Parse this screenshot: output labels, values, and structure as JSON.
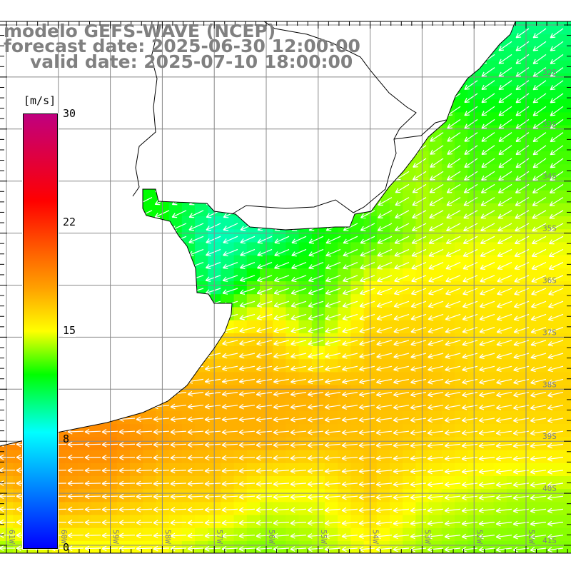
{
  "title": {
    "line1": "modelo GEFS-WAVE (NCEP)",
    "line2": "forecast date: 2025-06-30 12:00:00",
    "line3": "valid date: 2025-07-10 18:00:00"
  },
  "colorbar": {
    "unit": "[m/s]",
    "labels": [
      "30",
      "22",
      "15",
      "8",
      "0"
    ],
    "min": 0,
    "max": 30,
    "stops": [
      {
        "value": 0,
        "color": "#0000ff"
      },
      {
        "value": 8,
        "color": "#00ffff"
      },
      {
        "value": 12,
        "color": "#00ff00"
      },
      {
        "value": 15,
        "color": "#ffff00"
      },
      {
        "value": 18,
        "color": "#ffa000"
      },
      {
        "value": 20.5,
        "color": "#ff6000"
      },
      {
        "value": 24,
        "color": "#ff0000"
      },
      {
        "value": 30,
        "color": "#c0007f"
      }
    ]
  },
  "axes": {
    "lat_labels": [
      "32S",
      "33S",
      "34S",
      "35S",
      "36S",
      "37S",
      "38S",
      "39S",
      "40S",
      "41S"
    ],
    "lon_labels": [
      "61W",
      "60W",
      "59W",
      "58W",
      "57W",
      "56W",
      "55W",
      "54W",
      "53W",
      "52W",
      "51W"
    ]
  },
  "chart_data": {
    "type": "heatmap",
    "variable": "wind speed",
    "unit": "m/s",
    "lat": [
      31,
      32,
      33,
      34,
      35,
      36,
      37,
      38,
      39,
      40,
      41
    ],
    "lon": [
      61,
      60,
      59,
      58,
      57,
      56,
      55,
      54,
      53,
      52,
      51
    ],
    "speed": [
      [
        9,
        9,
        9,
        9,
        9,
        9,
        9,
        9,
        9,
        10,
        10
      ],
      [
        12,
        12,
        12,
        12,
        12,
        12,
        12,
        12,
        12,
        11,
        11
      ],
      [
        12,
        12,
        12,
        12,
        12,
        12,
        12,
        13.5,
        13.5,
        12.5,
        12.5
      ],
      [
        12,
        12,
        12,
        12,
        11,
        12,
        12,
        13.5,
        14,
        13,
        13
      ],
      [
        12,
        12,
        12,
        12,
        9,
        9.5,
        12,
        12.5,
        14,
        14.5,
        14.5
      ],
      [
        15,
        15,
        15,
        14,
        10,
        13.5,
        12.5,
        15,
        15.5,
        15.5,
        15.5
      ],
      [
        17,
        17,
        17,
        17,
        16,
        16.5,
        14,
        16.5,
        16.5,
        16,
        16
      ],
      [
        18,
        18,
        18,
        17.5,
        17.5,
        17.5,
        17.5,
        17,
        17,
        16.5,
        16.5
      ],
      [
        19,
        19,
        19,
        18,
        17.5,
        17.5,
        17,
        17,
        16.5,
        16,
        16
      ],
      [
        17,
        18,
        17.5,
        16.5,
        16.5,
        15,
        15,
        16.5,
        15,
        14.5,
        14
      ],
      [
        14,
        15,
        15,
        15,
        14,
        13.5,
        14,
        15,
        14,
        13.5,
        13.5
      ]
    ],
    "wind_direction": "from east/northeast (arrows pointing west to southwest)"
  }
}
